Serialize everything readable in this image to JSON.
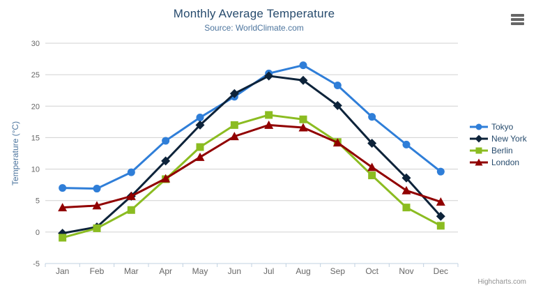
{
  "header": {
    "title": "Monthly Average Temperature",
    "subtitle": "Source: WorldClimate.com"
  },
  "toolbar": {
    "export_menu_icon": "hamburger-icon"
  },
  "chart_data": {
    "type": "line",
    "title": "Monthly Average Temperature",
    "subtitle": "Source: WorldClimate.com",
    "categories": [
      "Jan",
      "Feb",
      "Mar",
      "Apr",
      "May",
      "Jun",
      "Jul",
      "Aug",
      "Sep",
      "Oct",
      "Nov",
      "Dec"
    ],
    "xlabel": "",
    "ylabel": "Temperature (°C)",
    "ylim": [
      -5,
      30
    ],
    "ytick_step": 5,
    "grid": true,
    "legend_position": "right",
    "series": [
      {
        "name": "Tokyo",
        "color": "#2f7ed8",
        "marker": "circle",
        "values": [
          7.0,
          6.9,
          9.5,
          14.5,
          18.2,
          21.5,
          25.2,
          26.5,
          23.3,
          18.3,
          13.9,
          9.6
        ]
      },
      {
        "name": "New York",
        "color": "#0d233a",
        "marker": "diamond",
        "values": [
          -0.2,
          0.8,
          5.7,
          11.3,
          17.0,
          22.0,
          24.8,
          24.1,
          20.1,
          14.1,
          8.6,
          2.5
        ]
      },
      {
        "name": "Berlin",
        "color": "#8bbc21",
        "marker": "square",
        "values": [
          -0.9,
          0.6,
          3.5,
          8.4,
          13.5,
          17.0,
          18.6,
          17.9,
          14.3,
          9.0,
          3.9,
          1.0
        ]
      },
      {
        "name": "London",
        "color": "#910000",
        "marker": "triangle",
        "values": [
          3.9,
          4.2,
          5.7,
          8.5,
          11.9,
          15.2,
          17.0,
          16.6,
          14.2,
          10.3,
          6.6,
          4.8
        ]
      }
    ],
    "colors": {
      "grid": "#d0d0d0",
      "axis_line": "#c0d0e0",
      "tick_label": "#666666",
      "axis_title": "#4d759e",
      "legend_text": "#274b6d"
    }
  },
  "credits": {
    "text": "Highcharts.com"
  }
}
